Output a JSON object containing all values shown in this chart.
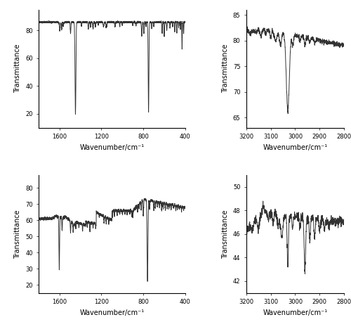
{
  "top_left": {
    "xlabel": "Wavenumber/cm⁻¹",
    "ylabel": "Transmittance",
    "xlim": [
      1800,
      400
    ],
    "ylim": [
      10,
      95
    ],
    "yticks": [
      20,
      40,
      60,
      80
    ],
    "xticks": [
      1600,
      1200,
      800,
      400
    ]
  },
  "top_right": {
    "xlabel": "Wavenumber/cm⁻¹",
    "ylabel": "Transmittance",
    "xlim": [
      3200,
      2800
    ],
    "ylim": [
      63,
      86
    ],
    "yticks": [
      65,
      70,
      75,
      80,
      85
    ],
    "xticks": [
      3200,
      3100,
      3000,
      2900,
      2800
    ]
  },
  "bot_left": {
    "xlabel": "Wavenumber/cm⁻¹",
    "ylabel": "Transmittance",
    "xlim": [
      1800,
      400
    ],
    "ylim": [
      15,
      88
    ],
    "yticks": [
      20,
      30,
      40,
      50,
      60,
      70,
      80
    ],
    "xticks": [
      1600,
      1200,
      800,
      400
    ]
  },
  "bot_right": {
    "xlabel": "Wavenumber/cm⁻¹",
    "ylabel": "Transmittance",
    "xlim": [
      3200,
      2800
    ],
    "ylim": [
      41,
      51
    ],
    "yticks": [
      42,
      44,
      46,
      48,
      50
    ],
    "xticks": [
      3200,
      3100,
      3000,
      2900,
      2800
    ]
  },
  "line_color": "#333333",
  "line_width": 0.7,
  "background_color": "#ffffff",
  "font_size": 7,
  "label_font_size": 7
}
